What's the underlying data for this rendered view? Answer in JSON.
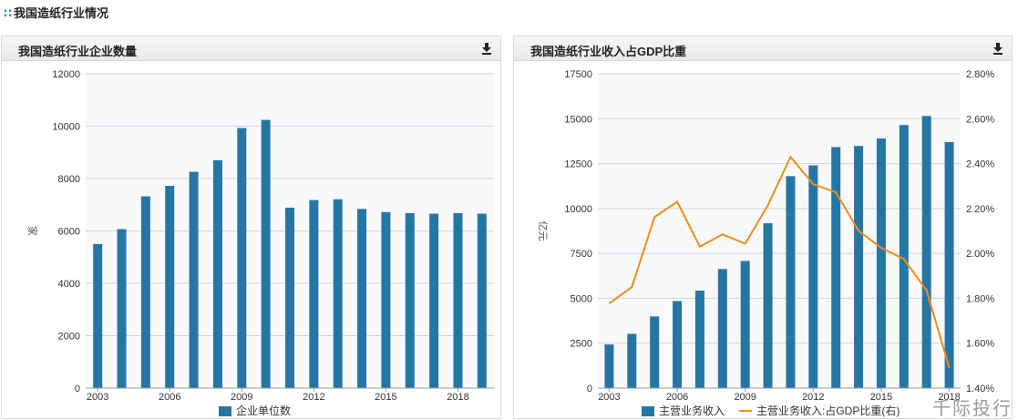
{
  "page": {
    "section_title": "我国造纸行业情况",
    "watermark": "千际投行"
  },
  "colors": {
    "bar": "#2676a4",
    "line": "#f08c1c",
    "grid": "#cfd3d8",
    "plot_bg": "#f8f9fb"
  },
  "chart_data": [
    {
      "type": "bar",
      "title": "我国造纸行业企业数量",
      "ylabel": "家",
      "ylim": [
        0,
        12000
      ],
      "yticks": [
        0,
        2000,
        4000,
        6000,
        8000,
        10000,
        12000
      ],
      "categories": [
        "2003",
        "2004",
        "2005",
        "2006",
        "2007",
        "2008",
        "2009",
        "2010",
        "2011",
        "2012",
        "2013",
        "2014",
        "2015",
        "2016",
        "2017",
        "2018",
        "2019"
      ],
      "x_tick_labels": [
        "2003",
        "2006",
        "2009",
        "2012",
        "2015",
        "2018"
      ],
      "series": [
        {
          "name": "企业单位数",
          "values": [
            5500,
            6070,
            7320,
            7720,
            8260,
            8700,
            9930,
            10240,
            6890,
            7180,
            7210,
            6840,
            6720,
            6680,
            6660,
            6680,
            6660
          ]
        }
      ],
      "legend": "bottom",
      "grid": true
    },
    {
      "type": "bar+line",
      "title": "我国造纸行业收入占GDP比重",
      "ylabel": "亿元",
      "ylim": [
        0,
        17500
      ],
      "yticks": [
        0,
        2500,
        5000,
        7500,
        10000,
        12500,
        15000,
        17500
      ],
      "y2lim": [
        1.4,
        2.8
      ],
      "y2ticks": [
        "1.40%",
        "1.60%",
        "1.80%",
        "2.00%",
        "2.20%",
        "2.40%",
        "2.60%",
        "2.80%"
      ],
      "categories": [
        "2003",
        "2004",
        "2005",
        "2006",
        "2007",
        "2008",
        "2009",
        "2010",
        "2011",
        "2012",
        "2013",
        "2014",
        "2015",
        "2016",
        "2017",
        "2018"
      ],
      "x_tick_labels": [
        "2003",
        "2006",
        "2009",
        "2012",
        "2015",
        "2018"
      ],
      "series": [
        {
          "name": "主营业务收入",
          "type": "bar",
          "values": [
            2430,
            3020,
            3990,
            4850,
            5430,
            6630,
            7080,
            9180,
            11800,
            12400,
            13420,
            13480,
            13900,
            14650,
            15150,
            13700
          ]
        },
        {
          "name": "主营业务收入:占GDP比重(右)",
          "type": "line",
          "axis": "right",
          "values": [
            1.777,
            1.85,
            2.162,
            2.23,
            2.03,
            2.085,
            2.043,
            2.215,
            2.43,
            2.308,
            2.272,
            2.1,
            2.025,
            1.975,
            1.835,
            1.49
          ]
        }
      ],
      "legend": "bottom",
      "grid": true
    }
  ]
}
